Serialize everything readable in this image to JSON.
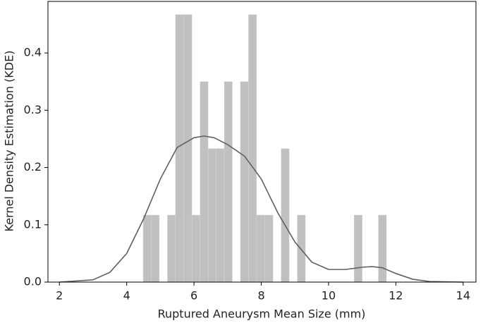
{
  "chart_data": {
    "type": "histogram",
    "xlabel": "Ruptured Aneurysm Mean Size (mm)",
    "ylabel": "Kernel Density Estimation (KDE)",
    "bins": [
      4.49,
      4.73,
      4.97,
      5.21,
      5.45,
      5.7,
      5.94,
      6.18,
      6.42,
      6.66,
      6.9,
      7.14,
      7.38,
      7.62,
      7.86,
      8.11,
      8.35,
      8.59,
      8.83,
      9.07,
      9.31,
      9.55,
      9.79,
      10.03,
      10.27,
      10.52,
      10.76,
      11.0,
      11.24,
      11.48,
      11.72
    ],
    "values": [
      0.117,
      0.117,
      0,
      0.117,
      0.467,
      0.467,
      0.117,
      0.35,
      0.233,
      0.233,
      0.35,
      0,
      0.35,
      0.467,
      0.117,
      0.117,
      0,
      0.233,
      0,
      0.117,
      0,
      0,
      0,
      0,
      0,
      0,
      0.117,
      0,
      0,
      0.117
    ],
    "color": "#c0c0c0",
    "kde": {
      "color": "#606060",
      "x": [
        2,
        3,
        3.5,
        4,
        4.5,
        5,
        5.5,
        6,
        6.3,
        6.6,
        7,
        7.5,
        8,
        8.5,
        9,
        9.5,
        10,
        10.5,
        11,
        11.3,
        11.6,
        12,
        12.5,
        13,
        14
      ],
      "values": [
        0.0,
        0.004,
        0.017,
        0.05,
        0.11,
        0.18,
        0.235,
        0.252,
        0.255,
        0.252,
        0.24,
        0.22,
        0.18,
        0.12,
        0.07,
        0.035,
        0.022,
        0.022,
        0.026,
        0.027,
        0.025,
        0.015,
        0.005,
        0.001,
        0.0
      ]
    },
    "xlim": [
      1.66,
      14.38
    ],
    "ylim": [
      0,
      0.49
    ],
    "xticks": [
      2,
      4,
      6,
      8,
      10,
      12,
      14
    ],
    "yticks": [
      {
        "value": 0,
        "label": "0.0"
      },
      {
        "value": 0.1,
        "label": "0.1"
      },
      {
        "value": 0.2,
        "label": "0.2"
      },
      {
        "value": 0.3,
        "label": "0.3"
      },
      {
        "value": 0.4,
        "label": "0.4"
      }
    ]
  }
}
